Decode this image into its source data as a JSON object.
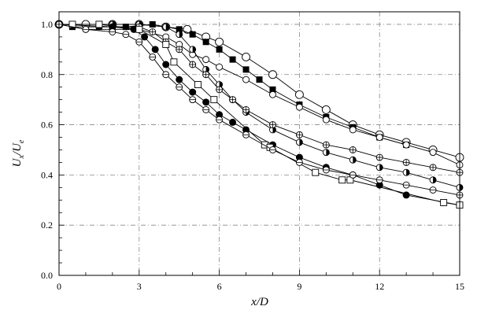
{
  "chart_data": {
    "type": "line",
    "xlabel": "x/D",
    "ylabel_parts": {
      "u1": "U",
      "s1": "x",
      "slash": "/",
      "u2": "U",
      "s2": "e"
    },
    "xlim": [
      0,
      15
    ],
    "ylim": [
      0,
      1.05
    ],
    "xticks": [
      0,
      3,
      6,
      9,
      12,
      15
    ],
    "yticks": [
      "0.0",
      "0.2",
      "0.4",
      "0.6",
      "0.8",
      "1.0"
    ],
    "grid": true,
    "series": [
      {
        "marker": "open-circle",
        "x": [
          0,
          1,
          2,
          3,
          4,
          4.8,
          5.5,
          6,
          7,
          8,
          9,
          10,
          11,
          12,
          13,
          14,
          15
        ],
        "y": [
          1,
          1,
          1,
          1,
          0.99,
          0.98,
          0.95,
          0.93,
          0.87,
          0.8,
          0.72,
          0.66,
          0.6,
          0.56,
          0.53,
          0.5,
          0.47
        ]
      },
      {
        "marker": "filled-square",
        "x": [
          0.5,
          1.5,
          2.5,
          3.5,
          4.5,
          5,
          5.5,
          6,
          6.5,
          7,
          7.5,
          8,
          9,
          10,
          11,
          12,
          13
        ],
        "y": [
          0.99,
          0.99,
          0.99,
          1,
          0.98,
          0.96,
          0.93,
          0.9,
          0.86,
          0.82,
          0.78,
          0.74,
          0.68,
          0.63,
          0.59,
          0.55,
          0.52
        ]
      },
      {
        "marker": "open-circle",
        "x": [
          0,
          1,
          2,
          3,
          4,
          4.5,
          5,
          5.5,
          6,
          7,
          8,
          9,
          10,
          11,
          12,
          13,
          14,
          15
        ],
        "y": [
          1,
          0.98,
          0.98,
          0.98,
          0.95,
          0.92,
          0.88,
          0.86,
          0.83,
          0.78,
          0.72,
          0.67,
          0.62,
          0.58,
          0.55,
          0.52,
          0.49,
          0.44
        ]
      },
      {
        "marker": "half-filled-circle",
        "x": [
          0,
          2,
          3,
          4,
          4.5,
          5,
          5.5,
          6,
          6.5,
          7,
          8,
          9,
          10,
          11,
          12,
          13,
          14,
          15
        ],
        "y": [
          1,
          1,
          1,
          0.99,
          0.96,
          0.9,
          0.82,
          0.76,
          0.7,
          0.65,
          0.58,
          0.53,
          0.49,
          0.46,
          0.43,
          0.41,
          0.38,
          0.35
        ]
      },
      {
        "marker": "circle-plus",
        "x": [
          0,
          2,
          3,
          3.5,
          4,
          4.5,
          5,
          5.5,
          6,
          6.5,
          7,
          8,
          9,
          10,
          11,
          12,
          13,
          14,
          15
        ],
        "y": [
          1,
          0.99,
          0.99,
          0.97,
          0.93,
          0.9,
          0.84,
          0.8,
          0.74,
          0.7,
          0.66,
          0.6,
          0.56,
          0.52,
          0.5,
          0.47,
          0.45,
          0.43,
          0.41
        ]
      },
      {
        "marker": "filled-circle",
        "x": [
          0,
          2,
          2.8,
          3.2,
          3.6,
          4,
          4.5,
          5,
          5.5,
          6,
          6.5,
          7,
          8,
          9,
          10,
          11,
          12,
          13,
          15
        ],
        "y": [
          1,
          0.99,
          0.98,
          0.95,
          0.9,
          0.84,
          0.78,
          0.73,
          0.69,
          0.64,
          0.61,
          0.58,
          0.52,
          0.47,
          0.43,
          0.4,
          0.36,
          0.32,
          0.28
        ]
      },
      {
        "marker": "open-square",
        "x": [
          0.5,
          1.5,
          3,
          4,
          4.3,
          5.2,
          5.8,
          7.7,
          7.9,
          9.6,
          10.6,
          10.9,
          14.4,
          15
        ],
        "y": [
          1,
          1,
          0.98,
          0.92,
          0.85,
          0.76,
          0.7,
          0.52,
          0.51,
          0.41,
          0.38,
          0.38,
          0.29,
          0.28
        ]
      },
      {
        "marker": "circle-minus",
        "x": [
          0,
          1,
          2,
          2.5,
          3,
          3.5,
          4,
          4.5,
          5,
          5.5,
          6,
          7,
          8,
          9,
          10,
          11,
          12,
          13,
          14,
          15
        ],
        "y": [
          1,
          0.98,
          0.97,
          0.96,
          0.93,
          0.87,
          0.8,
          0.75,
          0.7,
          0.66,
          0.62,
          0.56,
          0.5,
          0.45,
          0.42,
          0.4,
          0.38,
          0.36,
          0.34,
          0.32
        ]
      }
    ]
  }
}
